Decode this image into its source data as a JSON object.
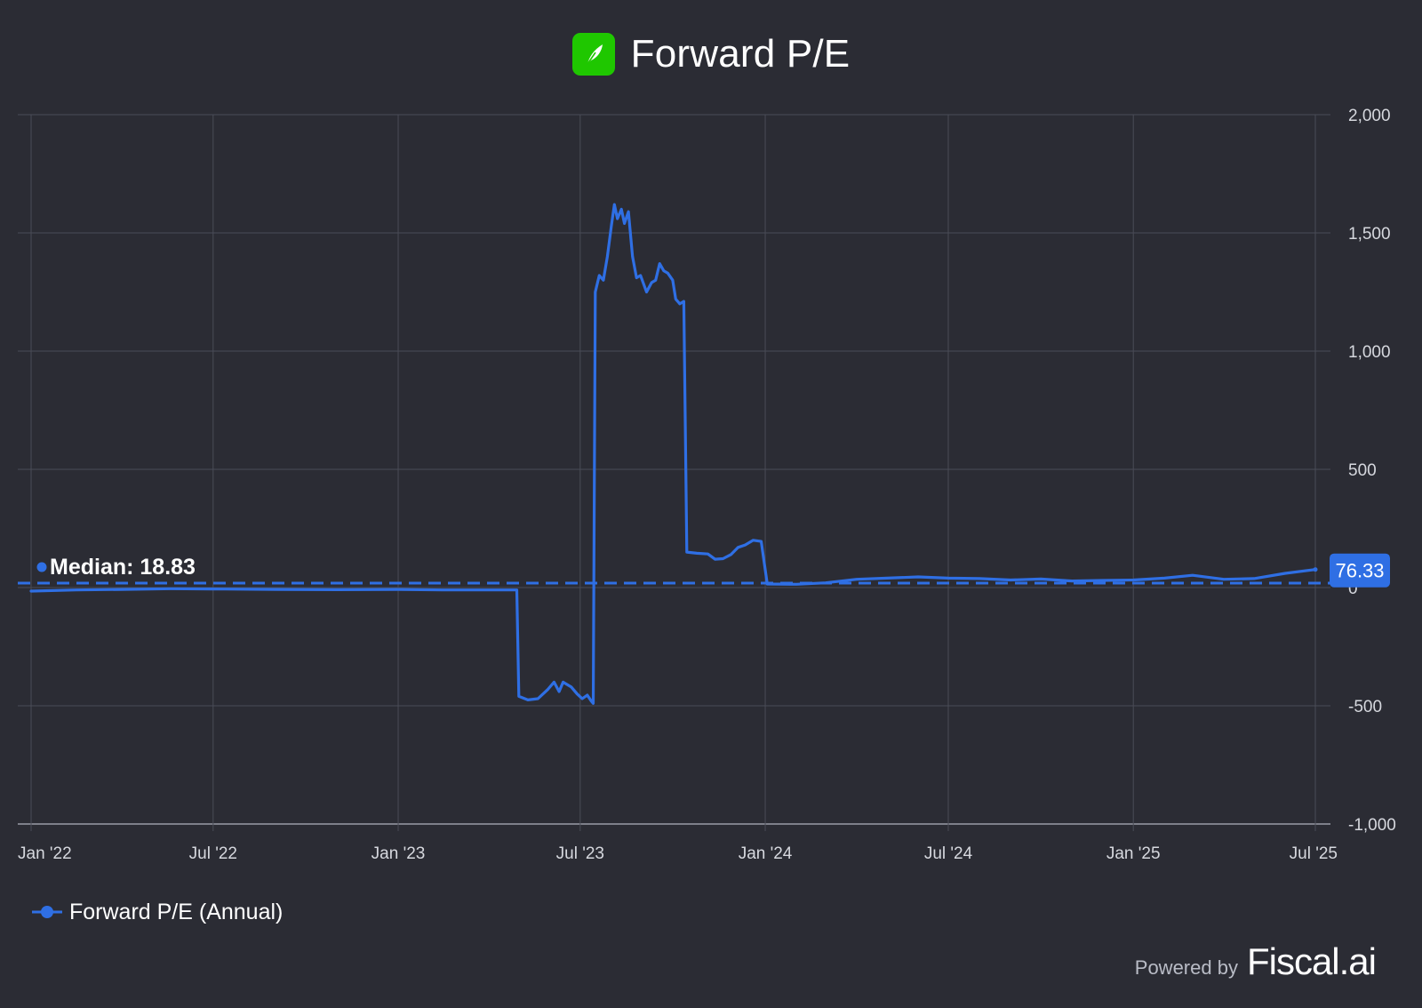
{
  "header": {
    "title": "Forward P/E",
    "logo_icon": "feather-logo-icon"
  },
  "legend": {
    "label": "Forward P/E (Annual)"
  },
  "footer": {
    "powered_label": "Powered by",
    "brand": "Fiscal.ai"
  },
  "colors": {
    "background": "#2b2c34",
    "series": "#2f6fe4",
    "grid": "#4a4c57",
    "logo": "#1fc700",
    "axis_text": "#d6d8de"
  },
  "chart_data": {
    "type": "line",
    "title": "Forward P/E",
    "xlabel": "",
    "ylabel": "",
    "x_ticks": [
      "Jan '22",
      "Jul '22",
      "Jan '23",
      "Jul '23",
      "Jan '24",
      "Jul '24",
      "Jan '25",
      "Jul '25"
    ],
    "x_tick_dates": [
      "2022-01-01",
      "2022-07-01",
      "2023-01-01",
      "2023-07-01",
      "2024-01-01",
      "2024-07-01",
      "2025-01-01",
      "2025-07-01"
    ],
    "x_range": [
      "2022-01-01",
      "2025-07-01"
    ],
    "y_ticks": [
      -1000,
      -500,
      0,
      500,
      1000,
      1500,
      2000
    ],
    "y_tick_labels": [
      "-1,000",
      "-500",
      "0",
      "500",
      "1,000",
      "1,500",
      "2,000"
    ],
    "ylim": [
      -1000,
      2000
    ],
    "grid": true,
    "legend_position": "bottom-left",
    "median": {
      "label": "Median: 18.83",
      "value": 18.83
    },
    "last_value_label": "76.33",
    "series": [
      {
        "name": "Forward P/E (Annual)",
        "points": [
          [
            "2022-01-01",
            -15
          ],
          [
            "2022-02-15",
            -10
          ],
          [
            "2022-04-01",
            -8
          ],
          [
            "2022-05-20",
            -5
          ],
          [
            "2022-07-01",
            -6
          ],
          [
            "2022-09-01",
            -8
          ],
          [
            "2022-11-01",
            -9
          ],
          [
            "2023-01-01",
            -8
          ],
          [
            "2023-02-15",
            -10
          ],
          [
            "2023-04-29",
            -10
          ],
          [
            "2023-05-01",
            -460
          ],
          [
            "2023-05-10",
            -475
          ],
          [
            "2023-05-20",
            -470
          ],
          [
            "2023-05-30",
            -430
          ],
          [
            "2023-06-05",
            -400
          ],
          [
            "2023-06-10",
            -440
          ],
          [
            "2023-06-14",
            -400
          ],
          [
            "2023-06-22",
            -420
          ],
          [
            "2023-06-28",
            -450
          ],
          [
            "2023-07-03",
            -470
          ],
          [
            "2023-07-08",
            -455
          ],
          [
            "2023-07-12",
            -480
          ],
          [
            "2023-07-14",
            -490
          ],
          [
            "2023-07-16",
            1250
          ],
          [
            "2023-07-20",
            1320
          ],
          [
            "2023-07-24",
            1300
          ],
          [
            "2023-07-28",
            1400
          ],
          [
            "2023-08-01",
            1530
          ],
          [
            "2023-08-04",
            1620
          ],
          [
            "2023-08-07",
            1560
          ],
          [
            "2023-08-11",
            1600
          ],
          [
            "2023-08-14",
            1540
          ],
          [
            "2023-08-18",
            1590
          ],
          [
            "2023-08-22",
            1400
          ],
          [
            "2023-08-26",
            1310
          ],
          [
            "2023-08-30",
            1320
          ],
          [
            "2023-09-05",
            1250
          ],
          [
            "2023-09-10",
            1290
          ],
          [
            "2023-09-14",
            1300
          ],
          [
            "2023-09-18",
            1370
          ],
          [
            "2023-09-22",
            1340
          ],
          [
            "2023-09-26",
            1330
          ],
          [
            "2023-10-01",
            1300
          ],
          [
            "2023-10-04",
            1220
          ],
          [
            "2023-10-08",
            1200
          ],
          [
            "2023-10-12",
            1210
          ],
          [
            "2023-10-15",
            150
          ],
          [
            "2023-10-25",
            145
          ],
          [
            "2023-11-05",
            142
          ],
          [
            "2023-11-12",
            120
          ],
          [
            "2023-11-20",
            122
          ],
          [
            "2023-11-28",
            140
          ],
          [
            "2023-12-05",
            170
          ],
          [
            "2023-12-12",
            180
          ],
          [
            "2023-12-20",
            200
          ],
          [
            "2023-12-28",
            195
          ],
          [
            "2024-01-03",
            15
          ],
          [
            "2024-02-01",
            14
          ],
          [
            "2024-03-01",
            20
          ],
          [
            "2024-04-01",
            35
          ],
          [
            "2024-05-01",
            40
          ],
          [
            "2024-06-01",
            45
          ],
          [
            "2024-07-01",
            40
          ],
          [
            "2024-08-01",
            38
          ],
          [
            "2024-09-01",
            32
          ],
          [
            "2024-10-01",
            36
          ],
          [
            "2024-11-01",
            28
          ],
          [
            "2024-12-01",
            30
          ],
          [
            "2025-01-01",
            32
          ],
          [
            "2025-02-01",
            40
          ],
          [
            "2025-03-01",
            52
          ],
          [
            "2025-04-01",
            35
          ],
          [
            "2025-05-01",
            38
          ],
          [
            "2025-06-01",
            60
          ],
          [
            "2025-07-01",
            76.33
          ]
        ]
      }
    ]
  }
}
